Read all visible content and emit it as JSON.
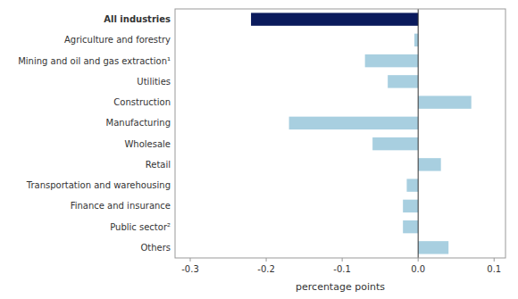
{
  "chart_data": {
    "type": "bar",
    "orientation": "horizontal",
    "categories": [
      "Others",
      "Public sector²",
      "Finance and insurance",
      "Transportation and warehousing",
      "Retail",
      "Wholesale",
      "Manufacturing",
      "Construction",
      "Utilities",
      "Mining and oil and gas extraction¹",
      "Agriculture and forestry",
      "All industries"
    ],
    "values": [
      0.04,
      -0.02,
      -0.02,
      -0.015,
      0.03,
      -0.06,
      -0.17,
      0.07,
      -0.04,
      -0.07,
      -0.005,
      -0.22
    ],
    "colors": [
      "#a8cfe0",
      "#a8cfe0",
      "#a8cfe0",
      "#a8cfe0",
      "#a8cfe0",
      "#a8cfe0",
      "#a8cfe0",
      "#a8cfe0",
      "#a8cfe0",
      "#a8cfe0",
      "#a8cfe0",
      "#0a1a5c"
    ],
    "x_label": "percentage points",
    "xlim": [
      -0.32,
      0.115
    ],
    "xticks": [
      -0.3,
      -0.2,
      -0.1,
      {
        "value": 0,
        "label": "0.0"
      },
      0.1
    ],
    "grid": false
  }
}
